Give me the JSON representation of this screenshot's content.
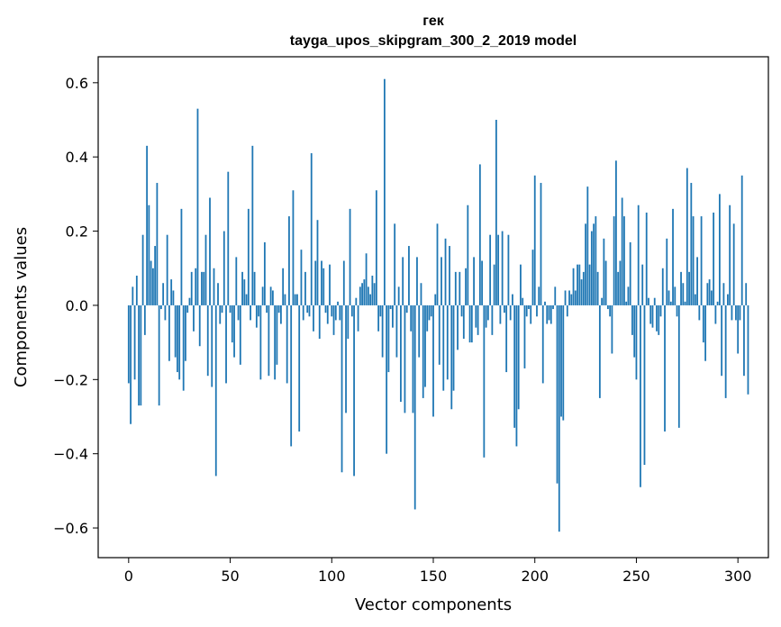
{
  "chart_data": {
    "type": "bar",
    "title_line1": "гек",
    "title_line2": "tayga_upos_skipgram_300_2_2019 model",
    "xlabel": "Vector components",
    "ylabel": "Components values",
    "xlim": [
      -15,
      315
    ],
    "ylim": [
      -0.68,
      0.67
    ],
    "xticks": [
      0,
      50,
      100,
      150,
      200,
      250,
      300
    ],
    "yticks": [
      -0.6,
      -0.4,
      -0.2,
      0.0,
      0.2,
      0.4,
      0.6
    ],
    "ytick_labels": [
      "−0.6",
      "−0.4",
      "−0.2",
      "0.0",
      "0.2",
      "0.4",
      "0.6"
    ],
    "bar_color": "#1f77b4",
    "values": [
      -0.21,
      -0.32,
      0.05,
      -0.2,
      0.08,
      -0.27,
      -0.27,
      0.19,
      -0.08,
      0.43,
      0.27,
      0.12,
      0.1,
      0.16,
      0.33,
      -0.27,
      -0.01,
      0.06,
      -0.04,
      0.19,
      -0.15,
      0.07,
      0.04,
      -0.14,
      -0.18,
      -0.2,
      0.26,
      -0.23,
      -0.15,
      -0.02,
      0.02,
      0.09,
      -0.07,
      0.1,
      0.53,
      -0.11,
      0.09,
      0.09,
      0.19,
      -0.19,
      0.29,
      -0.22,
      0.1,
      -0.46,
      0.06,
      -0.05,
      -0.02,
      0.2,
      -0.21,
      0.36,
      -0.02,
      -0.1,
      -0.14,
      0.13,
      -0.04,
      -0.16,
      0.09,
      0.07,
      0.03,
      0.26,
      -0.04,
      0.43,
      0.09,
      -0.06,
      -0.03,
      -0.2,
      0.05,
      0.17,
      -0.02,
      -0.19,
      0.05,
      0.04,
      -0.2,
      -0.16,
      -0.02,
      -0.05,
      0.1,
      0.03,
      -0.21,
      0.24,
      -0.38,
      0.31,
      0.03,
      0.03,
      -0.34,
      0.15,
      -0.04,
      0.09,
      -0.02,
      -0.03,
      0.41,
      -0.07,
      0.12,
      0.23,
      -0.09,
      0.12,
      0.1,
      -0.02,
      -0.05,
      0.11,
      -0.03,
      -0.08,
      -0.04,
      0.01,
      -0.04,
      -0.45,
      0.12,
      -0.29,
      -0.09,
      0.26,
      -0.03,
      -0.46,
      0.02,
      -0.07,
      0.05,
      0.06,
      0.07,
      0.14,
      0.05,
      0.03,
      0.08,
      0.06,
      0.31,
      -0.07,
      -0.03,
      -0.14,
      0.61,
      -0.4,
      -0.18,
      -0.01,
      -0.06,
      0.22,
      -0.14,
      0.05,
      -0.26,
      0.13,
      -0.29,
      -0.02,
      0.16,
      -0.07,
      -0.29,
      -0.55,
      0.13,
      -0.14,
      0.06,
      -0.25,
      -0.22,
      -0.07,
      -0.04,
      -0.03,
      -0.3,
      0.03,
      0.22,
      -0.16,
      0.13,
      -0.23,
      0.18,
      -0.2,
      0.16,
      -0.28,
      -0.23,
      0.09,
      -0.12,
      0.09,
      -0.03,
      -0.09,
      0.1,
      0.27,
      -0.1,
      -0.1,
      0.13,
      -0.06,
      -0.08,
      0.38,
      0.12,
      -0.41,
      -0.06,
      -0.04,
      0.19,
      -0.08,
      0.11,
      0.5,
      0.19,
      -0.05,
      0.2,
      -0.02,
      -0.18,
      0.19,
      -0.04,
      0.03,
      -0.33,
      -0.38,
      -0.28,
      0.11,
      0.02,
      -0.17,
      -0.03,
      -0.01,
      -0.05,
      0.15,
      0.35,
      -0.03,
      0.05,
      0.33,
      -0.21,
      0.01,
      -0.05,
      -0.04,
      -0.05,
      -0.01,
      0.05,
      -0.48,
      -0.61,
      -0.3,
      -0.31,
      0.04,
      -0.03,
      0.04,
      0.03,
      0.1,
      0.04,
      0.11,
      0.11,
      0.07,
      0.09,
      0.22,
      0.32,
      0.11,
      0.2,
      0.22,
      0.24,
      0.09,
      -0.25,
      0.02,
      0.18,
      0.12,
      -0.01,
      -0.03,
      -0.13,
      0.24,
      0.39,
      0.09,
      0.12,
      0.29,
      0.24,
      0.01,
      0.05,
      0.17,
      -0.08,
      -0.14,
      -0.2,
      0.27,
      -0.49,
      0.11,
      -0.43,
      0.25,
      0.02,
      -0.05,
      -0.06,
      0.02,
      -0.07,
      -0.08,
      -0.03,
      0.1,
      -0.34,
      0.18,
      0.04,
      0.01,
      0.26,
      0.05,
      -0.03,
      -0.33,
      0.09,
      0.06,
      0.01,
      0.37,
      0.09,
      0.33,
      0.24,
      0.03,
      0.13,
      -0.04,
      0.24,
      -0.1,
      -0.15,
      0.06,
      0.07,
      0.04,
      0.25,
      -0.05,
      0.01,
      0.3,
      -0.19,
      0.06,
      -0.25,
      0.03,
      0.27,
      -0.04,
      0.22,
      -0.04,
      -0.13,
      -0.04,
      0.35,
      -0.19,
      0.06,
      -0.24
    ]
  }
}
